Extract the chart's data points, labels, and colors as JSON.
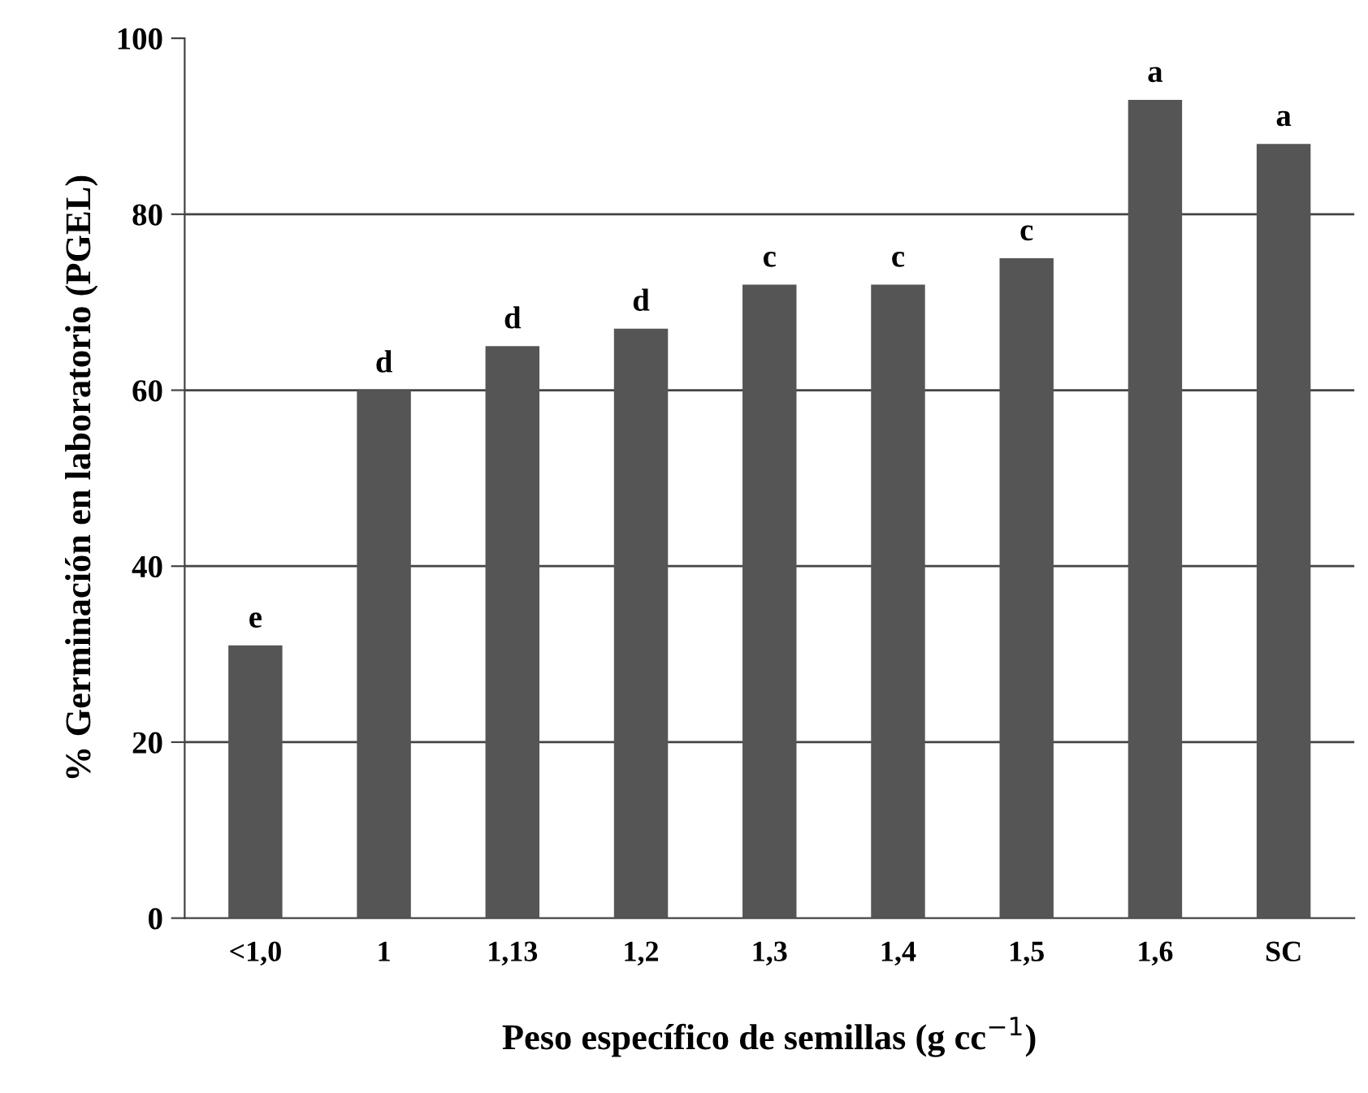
{
  "chart_data": {
    "type": "bar",
    "xlabel": "Peso específico de semillas (g cc$^{−1}$)",
    "ylabel": "% Germinación en laboratorio (PGEL)",
    "categories": [
      "<1,0",
      "1",
      "1,13",
      "1,2",
      "1,3",
      "1,4",
      "1,5",
      "1,6",
      "SC"
    ],
    "values": [
      31,
      60,
      65,
      67,
      72,
      72,
      75,
      93,
      88
    ],
    "color": "#555555",
    "ylim": [
      0,
      100
    ],
    "yticks": [
      0,
      20,
      40,
      60,
      80,
      100
    ],
    "grid": "y",
    "annotations": [
      {
        "text": "e",
        "x": "<1,0",
        "y": 31
      },
      {
        "text": "d",
        "x": "1",
        "y": 60
      },
      {
        "text": "d",
        "x": "1,13",
        "y": 65
      },
      {
        "text": "d",
        "x": "1,2",
        "y": 67
      },
      {
        "text": "c",
        "x": "1,3",
        "y": 72
      },
      {
        "text": "c",
        "x": "1,4",
        "y": 72
      },
      {
        "text": "c",
        "x": "1,5",
        "y": 75
      },
      {
        "text": "a",
        "x": "1,6",
        "y": 93
      },
      {
        "text": "a",
        "x": "SC",
        "y": 88
      }
    ]
  }
}
